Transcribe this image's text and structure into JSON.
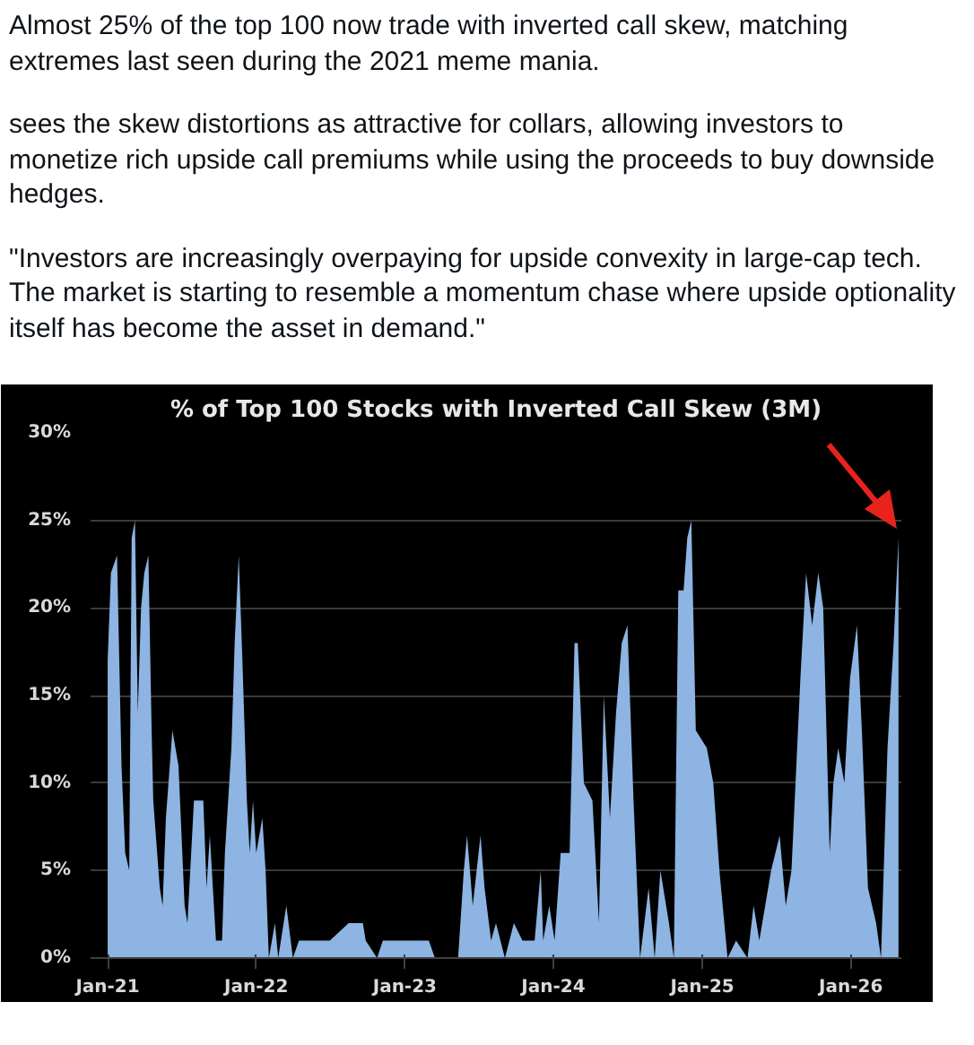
{
  "chart_data": {
    "type": "area",
    "title": "% of Top 100 Stocks with Inverted Call Skew (3M)",
    "annotations": [
      "Almost 25% of the top 100 now trade with inverted call skew, matching extremes last seen during the 2021 meme mania.",
      "sees the skew distortions as attractive for collars, allowing investors to monetize rich upside call premiums while using the proceeds to buy downside hedges.",
      "\"Investors are increasingly overpaying for upside convexity in large-cap tech. The market is starting to resemble a momentum chase where upside optionality itself has become the asset in demand.\""
    ],
    "x": [
      "2021-01-01",
      "2021-01-09",
      "2021-01-24",
      "2021-02-04",
      "2021-02-13",
      "2021-02-23",
      "2021-03-01",
      "2021-03-09",
      "2021-03-16",
      "2021-03-24",
      "2021-04-01",
      "2021-04-11",
      "2021-04-19",
      "2021-04-23",
      "2021-05-09",
      "2021-05-16",
      "2021-05-24",
      "2021-06-09",
      "2021-06-24",
      "2021-07-09",
      "2021-07-16",
      "2021-08-01",
      "2021-08-24",
      "2021-09-01",
      "2021-09-09",
      "2021-09-24",
      "2021-10-09",
      "2021-10-16",
      "2021-11-01",
      "2021-11-09",
      "2021-11-19",
      "2021-11-28",
      "2021-12-09",
      "2021-12-16",
      "2021-12-24",
      "2022-01-01",
      "2022-01-16",
      "2022-01-24",
      "2022-02-01",
      "2022-02-16",
      "2022-02-24",
      "2022-03-16",
      "2022-04-01",
      "2022-04-16",
      "2022-05-16",
      "2022-07-01",
      "2022-08-16",
      "2022-09-20",
      "2022-09-27",
      "2022-10-25",
      "2022-11-08",
      "2023-03-01",
      "2023-03-16",
      "2023-05-12",
      "2023-05-26",
      "2023-06-03",
      "2023-06-17",
      "2023-07-06",
      "2023-07-16",
      "2023-08-01",
      "2023-08-13",
      "2023-09-04",
      "2023-09-26",
      "2023-10-17",
      "2023-11-16",
      "2023-12-01",
      "2023-12-07",
      "2023-12-22",
      "2024-01-04",
      "2024-01-19",
      "2024-02-10",
      "2024-02-22",
      "2024-03-01",
      "2024-03-16",
      "2024-04-06",
      "2024-04-22",
      "2024-05-04",
      "2024-05-19",
      "2024-06-03",
      "2024-06-17",
      "2024-07-01",
      "2024-07-16",
      "2024-08-01",
      "2024-08-22",
      "2024-09-06",
      "2024-09-20",
      "2024-10-11",
      "2024-10-23",
      "2024-11-03",
      "2024-11-16",
      "2024-11-25",
      "2024-12-05",
      "2024-12-16",
      "2025-01-12",
      "2025-01-28",
      "2025-02-12",
      "2025-03-04",
      "2025-03-25",
      "2025-04-22",
      "2025-05-07",
      "2025-05-21",
      "2025-06-19",
      "2025-07-10",
      "2025-07-25",
      "2025-08-08",
      "2025-08-30",
      "2025-09-13",
      "2025-09-28",
      "2025-10-13",
      "2025-10-25",
      "2025-11-10",
      "2025-11-19",
      "2025-12-01",
      "2025-12-16",
      "2025-12-30",
      "2026-01-16",
      "2026-01-28",
      "2026-02-12",
      "2026-03-04",
      "2026-03-16",
      "2026-04-01",
      "2026-04-16",
      "2026-04-28"
    ],
    "series": [
      {
        "color": "#8db4e2",
        "values": [
          17,
          22,
          23,
          11,
          6,
          5,
          24,
          25,
          14,
          20,
          22,
          23,
          13,
          9,
          4,
          3,
          8,
          13,
          11,
          3,
          2,
          9,
          9,
          4,
          7,
          1,
          1,
          6,
          12,
          18,
          23,
          17,
          9,
          6,
          9,
          6,
          8,
          5,
          0,
          2,
          0,
          3,
          0,
          1,
          1,
          1,
          2,
          2,
          1,
          0,
          1,
          1,
          0,
          0,
          5,
          7,
          3,
          7,
          4,
          1,
          2,
          0,
          2,
          1,
          1,
          5,
          1,
          3,
          1,
          6,
          6,
          18,
          18,
          10,
          9,
          2,
          15,
          8,
          14,
          18,
          19,
          9,
          0,
          4,
          0,
          5,
          2,
          0,
          21,
          21,
          24,
          25,
          13,
          12,
          10,
          5,
          0,
          1,
          0,
          3,
          1,
          5,
          7,
          3,
          5,
          16,
          22,
          19,
          22,
          20,
          6,
          10,
          12,
          10,
          16,
          19,
          13,
          4,
          2,
          0,
          12,
          18,
          24
        ]
      }
    ],
    "xlim": [
      "2020-11-20",
      "2026-05-05"
    ],
    "xticks": [
      {
        "value": "2021-01-01",
        "label": "Jan-21"
      },
      {
        "value": "2022-01-01",
        "label": "Jan-22"
      },
      {
        "value": "2023-01-01",
        "label": "Jan-23"
      },
      {
        "value": "2024-01-01",
        "label": "Jan-24"
      },
      {
        "value": "2025-01-01",
        "label": "Jan-25"
      },
      {
        "value": "2026-01-01",
        "label": "Jan-26"
      }
    ],
    "ylim": [
      0,
      30
    ],
    "yticks": [
      {
        "value": 0,
        "label": "0%"
      },
      {
        "value": 5,
        "label": "5%"
      },
      {
        "value": 10,
        "label": "10%"
      },
      {
        "value": 15,
        "label": "15%"
      },
      {
        "value": 20,
        "label": "20%"
      },
      {
        "value": 25,
        "label": "25%"
      },
      {
        "value": 30,
        "label": "30%"
      }
    ],
    "grid": "y"
  }
}
